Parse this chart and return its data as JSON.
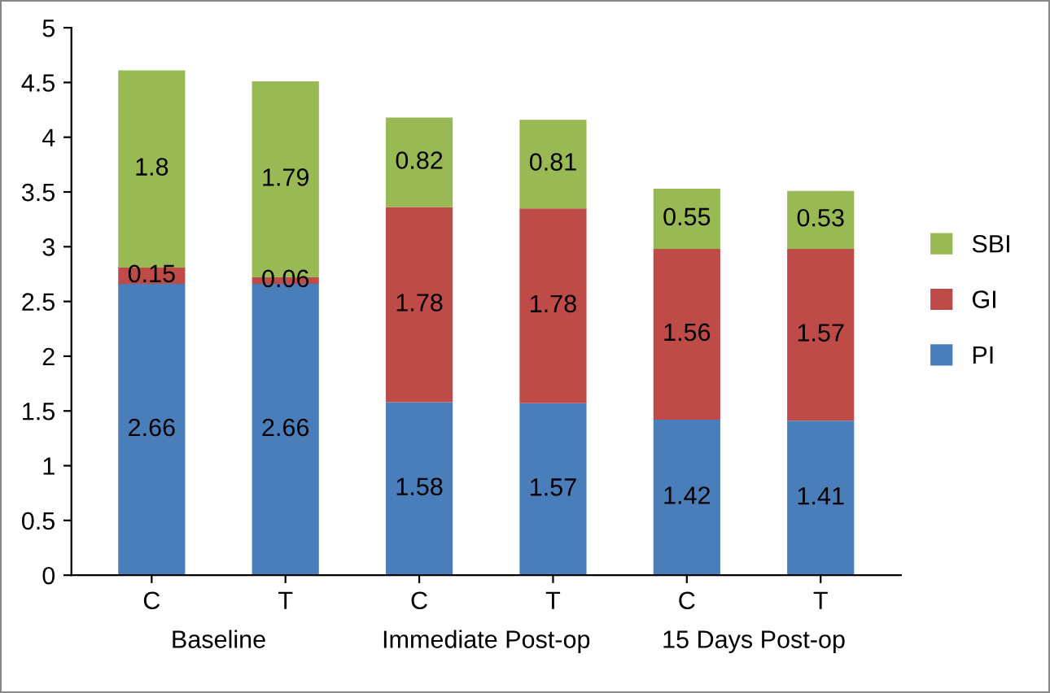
{
  "chart_data": {
    "type": "bar",
    "stacked": true,
    "categories": [
      "C",
      "T",
      "C",
      "T",
      "C",
      "T"
    ],
    "series": [
      {
        "name": "PI",
        "color": "#4a7ebb",
        "values": [
          2.66,
          2.66,
          1.58,
          1.57,
          1.42,
          1.41
        ]
      },
      {
        "name": "GI",
        "color": "#be4b48",
        "values": [
          0.15,
          0.06,
          1.78,
          1.78,
          1.56,
          1.57
        ]
      },
      {
        "name": "SBI",
        "color": "#98b954",
        "values": [
          1.8,
          1.79,
          0.82,
          0.81,
          0.55,
          0.53
        ]
      }
    ],
    "annotations": [
      "Baseline",
      "Immediate Post-op",
      "15 Days Post-op"
    ],
    "ylim": [
      0,
      5
    ],
    "yticks": [
      0,
      0.5,
      1,
      1.5,
      2,
      2.5,
      3,
      3.5,
      4,
      4.5,
      5
    ],
    "data_labels": true,
    "legend": "right",
    "grid": false
  }
}
